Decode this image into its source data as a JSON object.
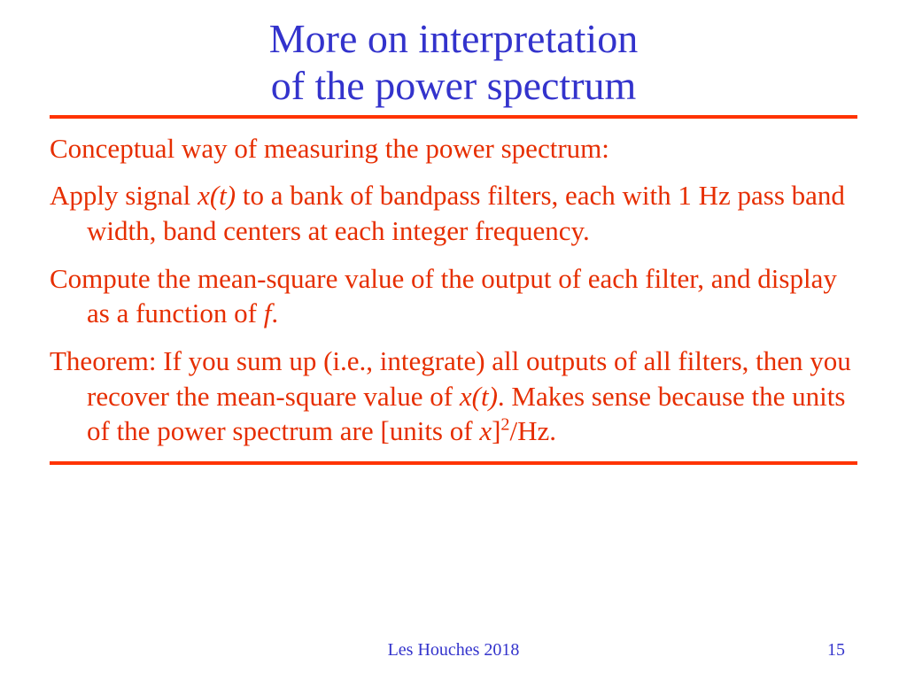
{
  "colors": {
    "title": "#3333cc",
    "rule": "#ff3300",
    "body": "#e62e00",
    "footer": "#3333cc",
    "pagenum": "#3333cc",
    "background": "#ffffff"
  },
  "fontsizes": {
    "title_pt": 46,
    "body_pt": 31,
    "footer_pt": 20
  },
  "title": {
    "line1": "More on interpretation",
    "line2": "of the power spectrum"
  },
  "paragraphs": {
    "p1": "Conceptual way of measuring the power spectrum:",
    "p2_a": "Apply signal ",
    "p2_xt": "x(t)",
    "p2_b": " to a bank of bandpass filters, each with 1 Hz pass band width, band centers at each integer frequency.",
    "p3_a": "Compute the mean-square value of the output of each filter, and display as a function of ",
    "p3_f": "f",
    "p3_b": ".",
    "p4_a": "Theorem: If you sum up (i.e., integrate) all outputs of all filters, then you recover the mean-square value of ",
    "p4_xt": "x(t)",
    "p4_b": ". Makes sense because the units of the power spectrum are [units of ",
    "p4_x": "x",
    "p4_c": "]",
    "p4_sup": "2",
    "p4_d": "/Hz."
  },
  "footer": "Les Houches 2018",
  "pagenum": "15"
}
